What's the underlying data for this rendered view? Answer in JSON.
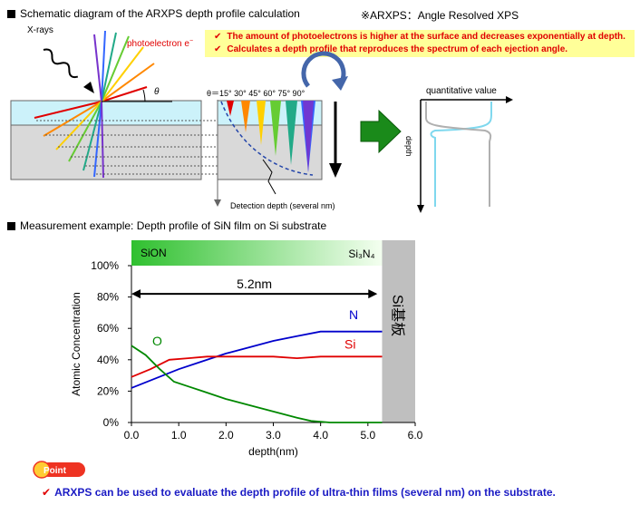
{
  "section1": {
    "heading": "Schematic diagram of the ARXPS depth profile calculation",
    "abbreviation_note": "※ARXPS：Angle Resolved XPS",
    "notes": [
      "The amount of photoelectrons is higher at the surface and decreases exponentially at depth.",
      "Calculates a depth profile that reproduces the spectrum of each ejection angle."
    ],
    "xrays_label": "X-rays",
    "photoelectron_label": "photoelectron e",
    "photoelectron_superscript": "−",
    "theta_label": "θ",
    "angles_label": "θ＝15° 30° 45° 60° 75° 90°",
    "detection_label": "Detection depth (several nm)",
    "quantitative_label": "quantitative value",
    "depth_label": "depth"
  },
  "section2": {
    "heading": "Measurement example: Depth profile of SiN film on Si substrate"
  },
  "chart_data": {
    "type": "line",
    "xlabel": "depth(nm)",
    "ylabel": "Atomic Concentration",
    "xlim": [
      0.0,
      6.0
    ],
    "ylim": [
      0,
      100
    ],
    "xticks": [
      "0.0",
      "1.0",
      "2.0",
      "3.0",
      "4.0",
      "5.0",
      "6.0"
    ],
    "yticks": [
      "0%",
      "20%",
      "40%",
      "60%",
      "80%",
      "100%"
    ],
    "band_left_label": "SiON",
    "band_right_label": "Si₃N₄",
    "thickness_label": "5.2nm",
    "thickness_value": 5.2,
    "substrate_label": "Si基板",
    "substrate_start": 5.3,
    "series": [
      {
        "name": "N",
        "color": "#0000cc",
        "x": [
          0.0,
          0.5,
          1.0,
          1.5,
          2.0,
          2.5,
          3.0,
          3.5,
          4.0,
          4.5,
          5.0,
          5.3
        ],
        "y": [
          22,
          28,
          34,
          39,
          44,
          48,
          52,
          55,
          58,
          58,
          58,
          58
        ]
      },
      {
        "name": "Si",
        "color": "#e00000",
        "x": [
          0.0,
          0.4,
          0.8,
          1.2,
          1.6,
          2.0,
          2.5,
          3.0,
          3.5,
          4.0,
          4.5,
          5.0,
          5.3
        ],
        "y": [
          29,
          34,
          40,
          41,
          42,
          42,
          42,
          42,
          41,
          42,
          42,
          42,
          42
        ]
      },
      {
        "name": "O",
        "color": "#008800",
        "x": [
          0.0,
          0.3,
          0.6,
          0.9,
          1.2,
          1.5,
          2.0,
          2.5,
          3.0,
          3.5,
          3.8,
          4.2,
          5.3
        ],
        "y": [
          49,
          43,
          34,
          26,
          23,
          20,
          15,
          11,
          7,
          3,
          1,
          0,
          0
        ]
      }
    ]
  },
  "point_badge": "Point",
  "conclusion": "ARXPS can be used to evaluate the depth profile of ultra-thin films (several nm) on the substrate."
}
